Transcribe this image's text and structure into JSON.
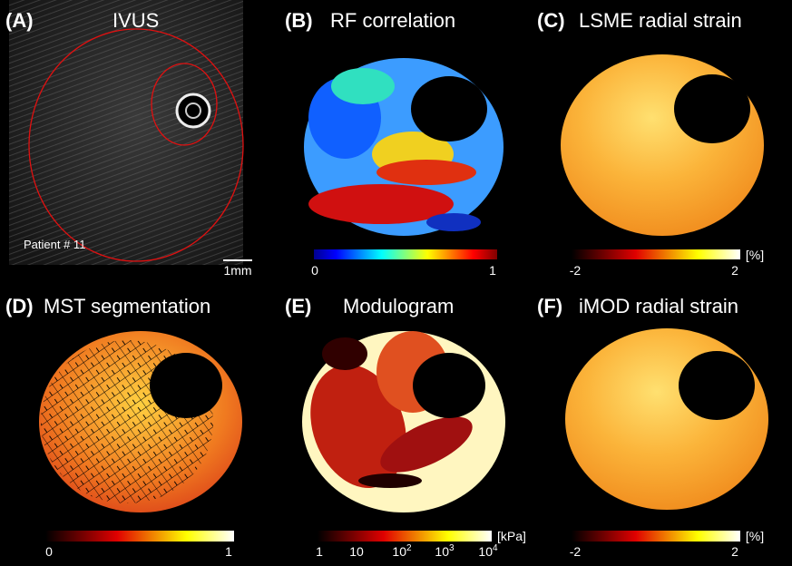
{
  "panels": [
    {
      "label": "(A)",
      "title": "IVUS",
      "annotation": "Patient # 11",
      "scale_bar": "1mm"
    },
    {
      "label": "(B)",
      "title": "RF correlation",
      "colorbar": {
        "ticks": [
          "0",
          "1"
        ]
      }
    },
    {
      "label": "(C)",
      "title": "LSME radial strain",
      "colorbar": {
        "ticks": [
          "-2",
          "2"
        ],
        "unit": "[%]"
      }
    },
    {
      "label": "(D)",
      "title": "MST segmentation",
      "colorbar": {
        "ticks": [
          "0",
          "1"
        ]
      }
    },
    {
      "label": "(E)",
      "title": "Modulogram",
      "colorbar": {
        "ticks": [
          "1",
          "10",
          {
            "base": "10",
            "exp": "2"
          },
          {
            "base": "10",
            "exp": "3"
          },
          {
            "base": "10",
            "exp": "4"
          }
        ],
        "unit": "[kPa]"
      }
    },
    {
      "label": "(F)",
      "title": "iMOD radial strain",
      "colorbar": {
        "ticks": [
          "-2",
          "2"
        ],
        "unit": "[%]"
      }
    }
  ]
}
